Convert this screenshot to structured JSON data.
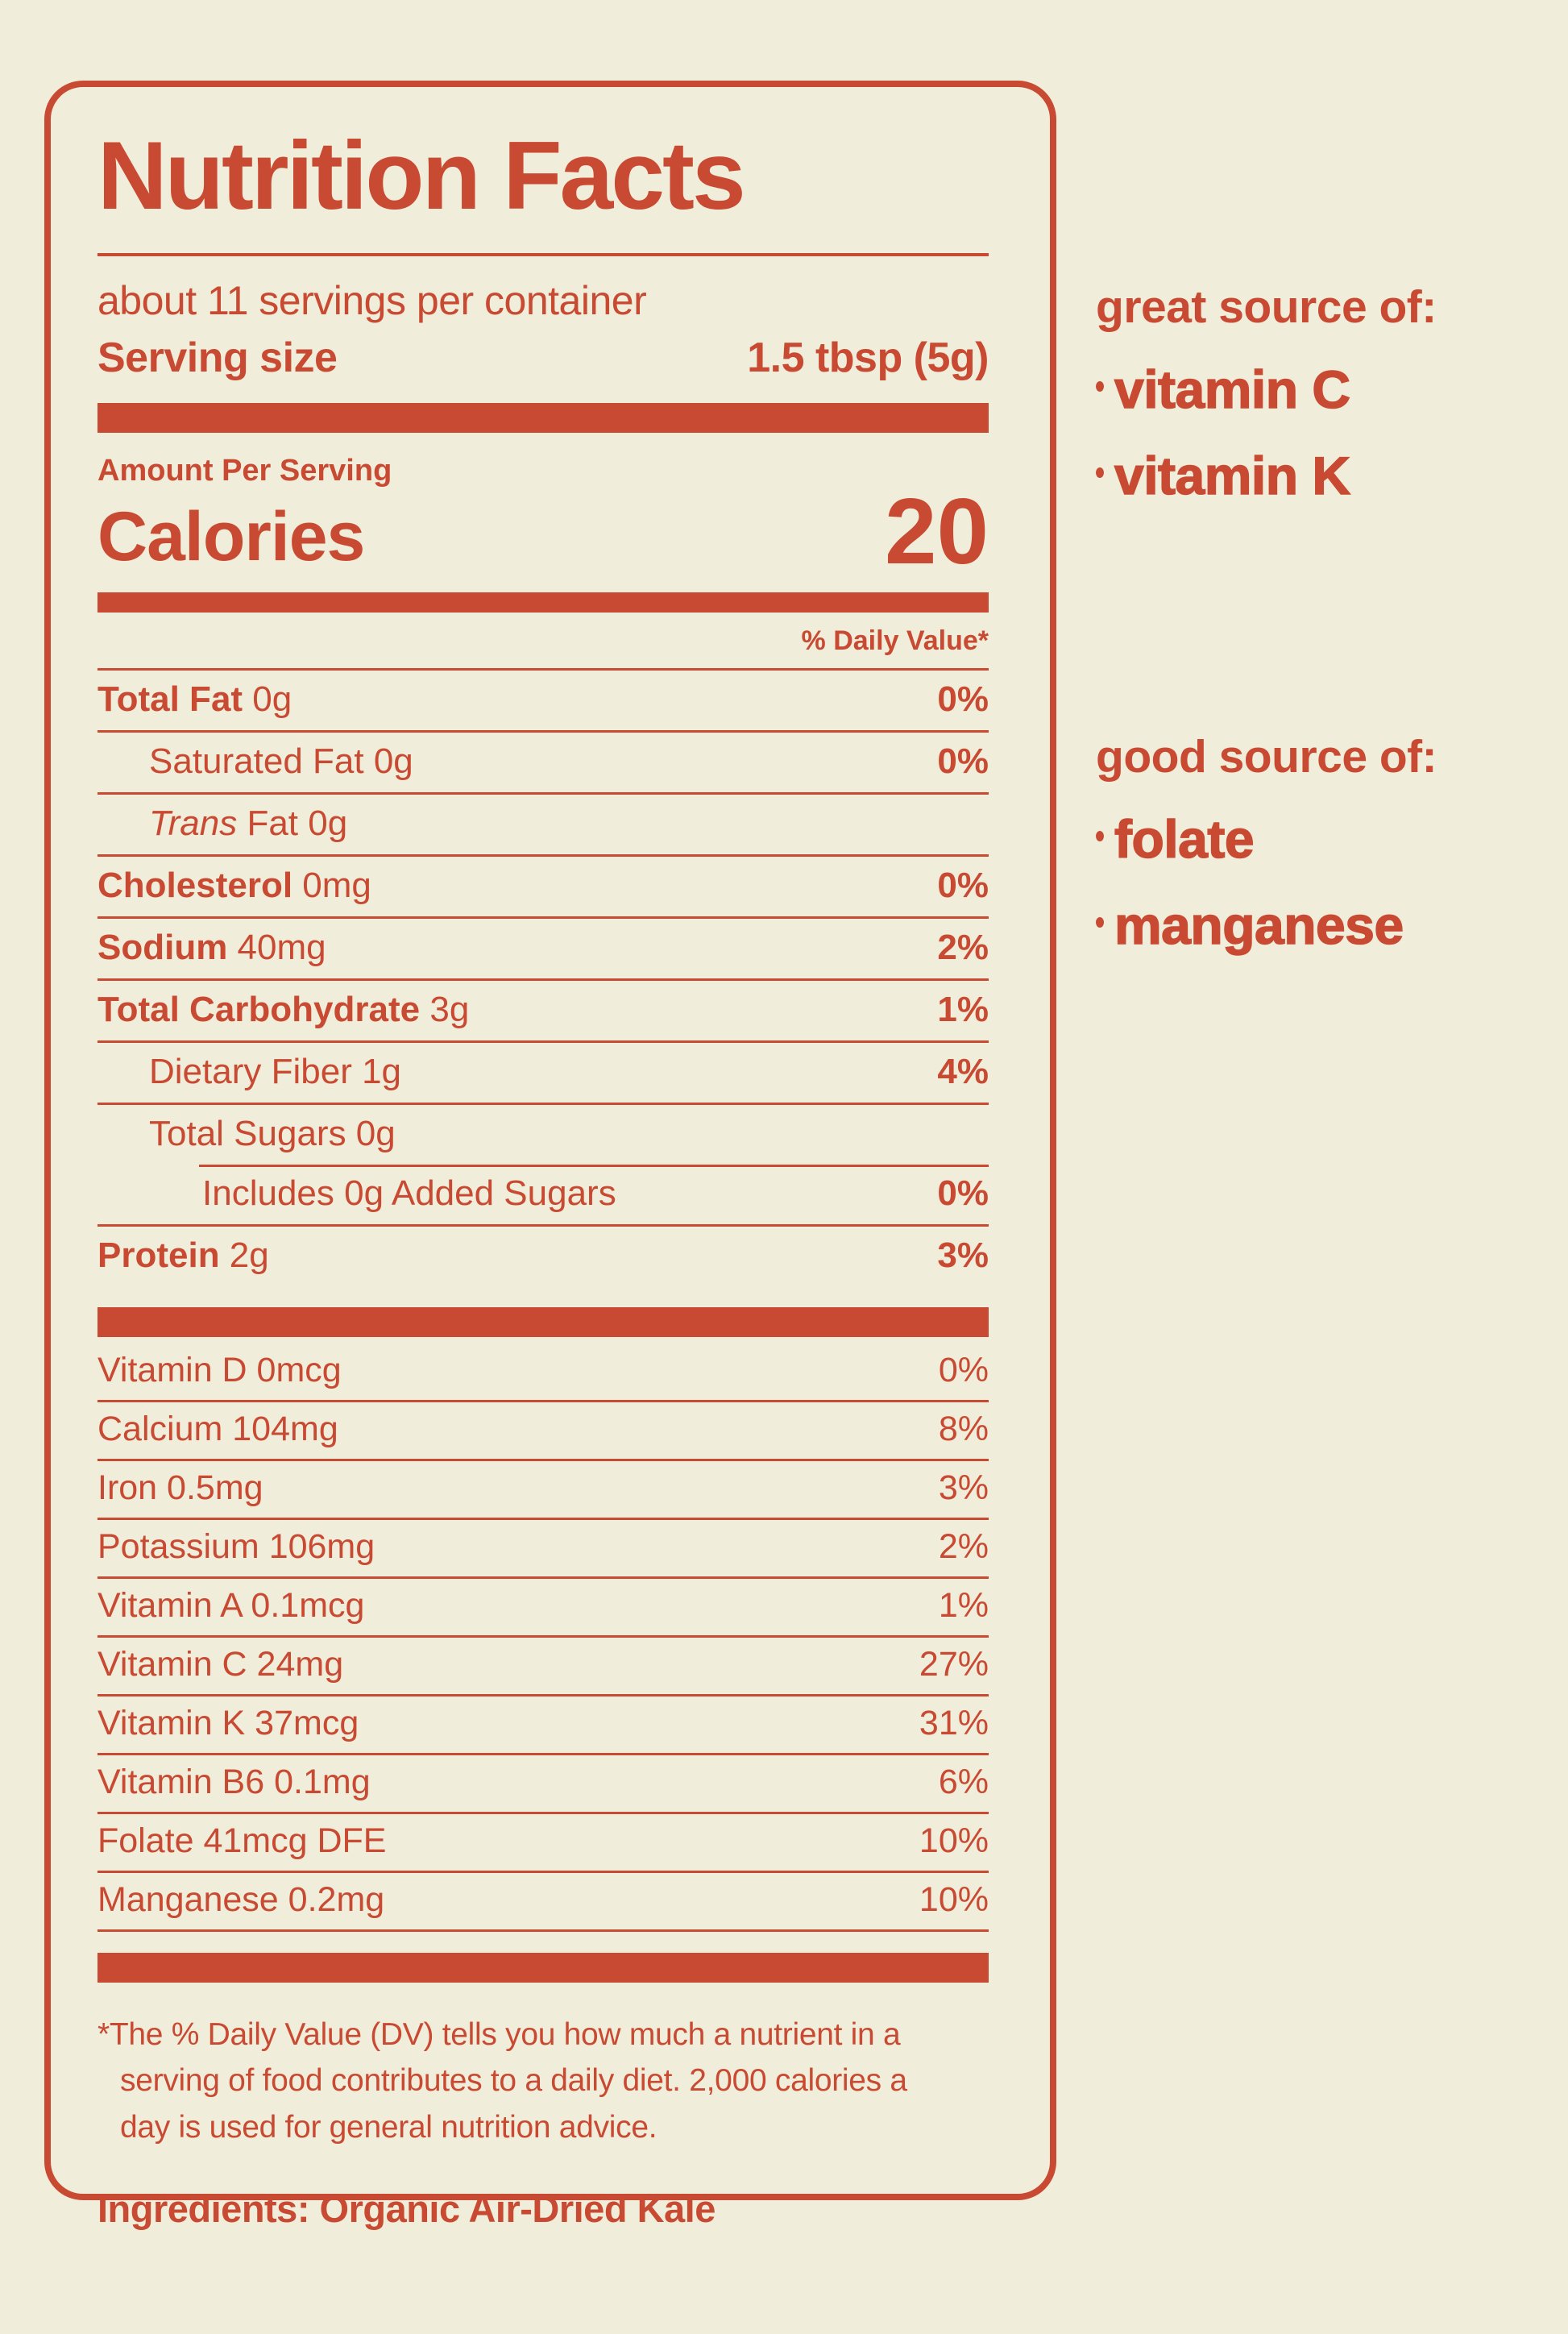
{
  "colors": {
    "accent": "#c94a32",
    "background": "#f0edda"
  },
  "label": {
    "title": "Nutrition Facts",
    "servings_per_container": "about 11 servings per container",
    "serving_size": {
      "label": "Serving size",
      "value": "1.5 tbsp (5g)"
    },
    "amount_per_serving": "Amount Per Serving",
    "calories": {
      "label": "Calories",
      "value": "20"
    },
    "daily_value_header": "% Daily Value*",
    "nutrients": [
      {
        "name": "Total Fat",
        "amount": "0g",
        "emphasis": "bold",
        "indent": 0,
        "pct": "0%"
      },
      {
        "name": "Saturated Fat",
        "amount": "0g",
        "emphasis": "none",
        "indent": 1,
        "pct": "0%"
      },
      {
        "name": "Trans",
        "amount": "Fat 0g",
        "emphasis": "italic",
        "indent": 1,
        "pct": ""
      },
      {
        "name": "Cholesterol",
        "amount": "0mg",
        "emphasis": "bold",
        "indent": 0,
        "pct": "0%"
      },
      {
        "name": "Sodium",
        "amount": "40mg",
        "emphasis": "bold",
        "indent": 0,
        "pct": "2%"
      },
      {
        "name": "Total Carbohydrate",
        "amount": "3g",
        "emphasis": "bold",
        "indent": 0,
        "pct": "1%"
      },
      {
        "name": "Dietary Fiber",
        "amount": "1g",
        "emphasis": "none",
        "indent": 1,
        "pct": "4%"
      },
      {
        "name": "Total Sugars",
        "amount": "0g",
        "emphasis": "none",
        "indent": 1,
        "pct": ""
      },
      {
        "name": "Includes 0g Added Sugars",
        "amount": "",
        "emphasis": "none",
        "indent": 2,
        "pct": "0%",
        "rule_indent": true
      },
      {
        "name": "Protein",
        "amount": "2g",
        "emphasis": "bold",
        "indent": 0,
        "pct": "3%"
      }
    ],
    "vitamins": [
      {
        "label": "Vitamin D 0mcg",
        "pct": "0%"
      },
      {
        "label": "Calcium 104mg",
        "pct": "8%"
      },
      {
        "label": "Iron 0.5mg",
        "pct": "3%"
      },
      {
        "label": "Potassium 106mg",
        "pct": "2%"
      },
      {
        "label": "Vitamin A 0.1mcg",
        "pct": "1%"
      },
      {
        "label": "Vitamin C 24mg",
        "pct": "27%"
      },
      {
        "label": "Vitamin K 37mcg",
        "pct": "31%"
      },
      {
        "label": "Vitamin B6 0.1mg",
        "pct": "6%"
      },
      {
        "label": "Folate 41mcg DFE",
        "pct": "10%"
      },
      {
        "label": "Manganese 0.2mg",
        "pct": "10%"
      }
    ],
    "footnote_mark": "*",
    "footnote": "The % Daily Value (DV) tells you how much a nutrient in a serving of food contributes to a daily diet. 2,000 calories a day is used for general nutrition advice.",
    "ingredients": "Ingredients: Organic Air-Dried Kale"
  },
  "callouts": {
    "great": {
      "heading": "great source of:",
      "items": [
        "vitamin C",
        "vitamin K"
      ]
    },
    "good": {
      "heading": "good source of:",
      "items": [
        "folate",
        "manganese"
      ]
    }
  }
}
